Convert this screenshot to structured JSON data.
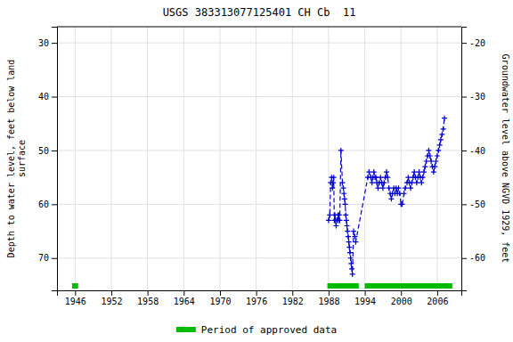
{
  "chart_data": {
    "type": "line",
    "title": "USGS 383313077125401 CH Cb  11",
    "ylabel": "Depth to water level, feet below land\n surface",
    "y2label": "Groundwater level above NGVD 1929, feet",
    "xlim": [
      1943,
      2010
    ],
    "xticks": [
      1946,
      1952,
      1958,
      1964,
      1970,
      1976,
      1982,
      1988,
      1994,
      2000,
      2006
    ],
    "ylim": [
      76,
      27
    ],
    "yticks": [
      30,
      40,
      50,
      60,
      70
    ],
    "y2lim": [
      -66,
      -17
    ],
    "y2ticks": [
      -20,
      -30,
      -40,
      -50,
      -60
    ],
    "grid": true,
    "x": [
      1988.0,
      1988.2,
      1988.35,
      1988.5,
      1988.65,
      1988.75,
      1988.85,
      1988.95,
      1989.05,
      1989.15,
      1989.25,
      1989.4,
      1989.55,
      1989.65,
      1989.75,
      1989.85,
      1990.05,
      1990.3,
      1990.45,
      1990.55,
      1990.65,
      1990.75,
      1990.85,
      1990.95,
      1991.05,
      1991.15,
      1991.25,
      1991.35,
      1991.45,
      1991.55,
      1991.65,
      1991.75,
      1991.85,
      1991.95,
      1992.15,
      1992.35,
      1992.5,
      1994.5,
      1994.7,
      1995.0,
      1995.2,
      1995.35,
      1995.5,
      1995.7,
      1995.85,
      1996.0,
      1996.2,
      1996.4,
      1996.6,
      1996.8,
      1997.0,
      1997.2,
      1997.4,
      1997.6,
      1997.8,
      1998.0,
      1998.2,
      1998.4,
      1998.6,
      1998.8,
      1999.0,
      1999.2,
      1999.4,
      1999.6,
      1999.8,
      2000.0,
      2000.2,
      2000.5,
      2000.7,
      2001.0,
      2001.2,
      2001.4,
      2001.6,
      2001.8,
      2002.0,
      2002.2,
      2002.4,
      2002.6,
      2002.8,
      2003.0,
      2003.2,
      2003.4,
      2003.6,
      2003.8,
      2004.0,
      2004.2,
      2004.4,
      2004.6,
      2004.8,
      2005.0,
      2005.2,
      2005.4,
      2005.6,
      2005.8,
      2006.0,
      2006.2,
      2006.4,
      2006.6,
      2006.8,
      2007.0,
      2007.2
    ],
    "series": [
      {
        "color": "#0000cc",
        "line_style": "dashed",
        "marker": "plus",
        "values": [
          63,
          62,
          56,
          55,
          57,
          56,
          55,
          63,
          62,
          63,
          64,
          63,
          62,
          63,
          62,
          63,
          50,
          56,
          57,
          58,
          59,
          60,
          62,
          63,
          64,
          65,
          66,
          67,
          68,
          69,
          70,
          71,
          72,
          73,
          65,
          66,
          67,
          55,
          54,
          55,
          56,
          55,
          54,
          55,
          55,
          56,
          57,
          56,
          55,
          56,
          57,
          56,
          55,
          54,
          55,
          57,
          58,
          59,
          58,
          57,
          58,
          57,
          58,
          57,
          58,
          60,
          60,
          58,
          57,
          56,
          55,
          56,
          57,
          56,
          55,
          54,
          55,
          56,
          55,
          54,
          55,
          56,
          55,
          54,
          53,
          52,
          51,
          50,
          51,
          52,
          53,
          54,
          53,
          52,
          51,
          50,
          49,
          48,
          47,
          46,
          44
        ]
      }
    ],
    "periods": {
      "name": "Period of approved data",
      "color": "#00bb00",
      "ranges": [
        [
          1945.5,
          1946.5
        ],
        [
          1987.8,
          1993.0
        ],
        [
          1994.0,
          2008.5
        ]
      ]
    }
  }
}
